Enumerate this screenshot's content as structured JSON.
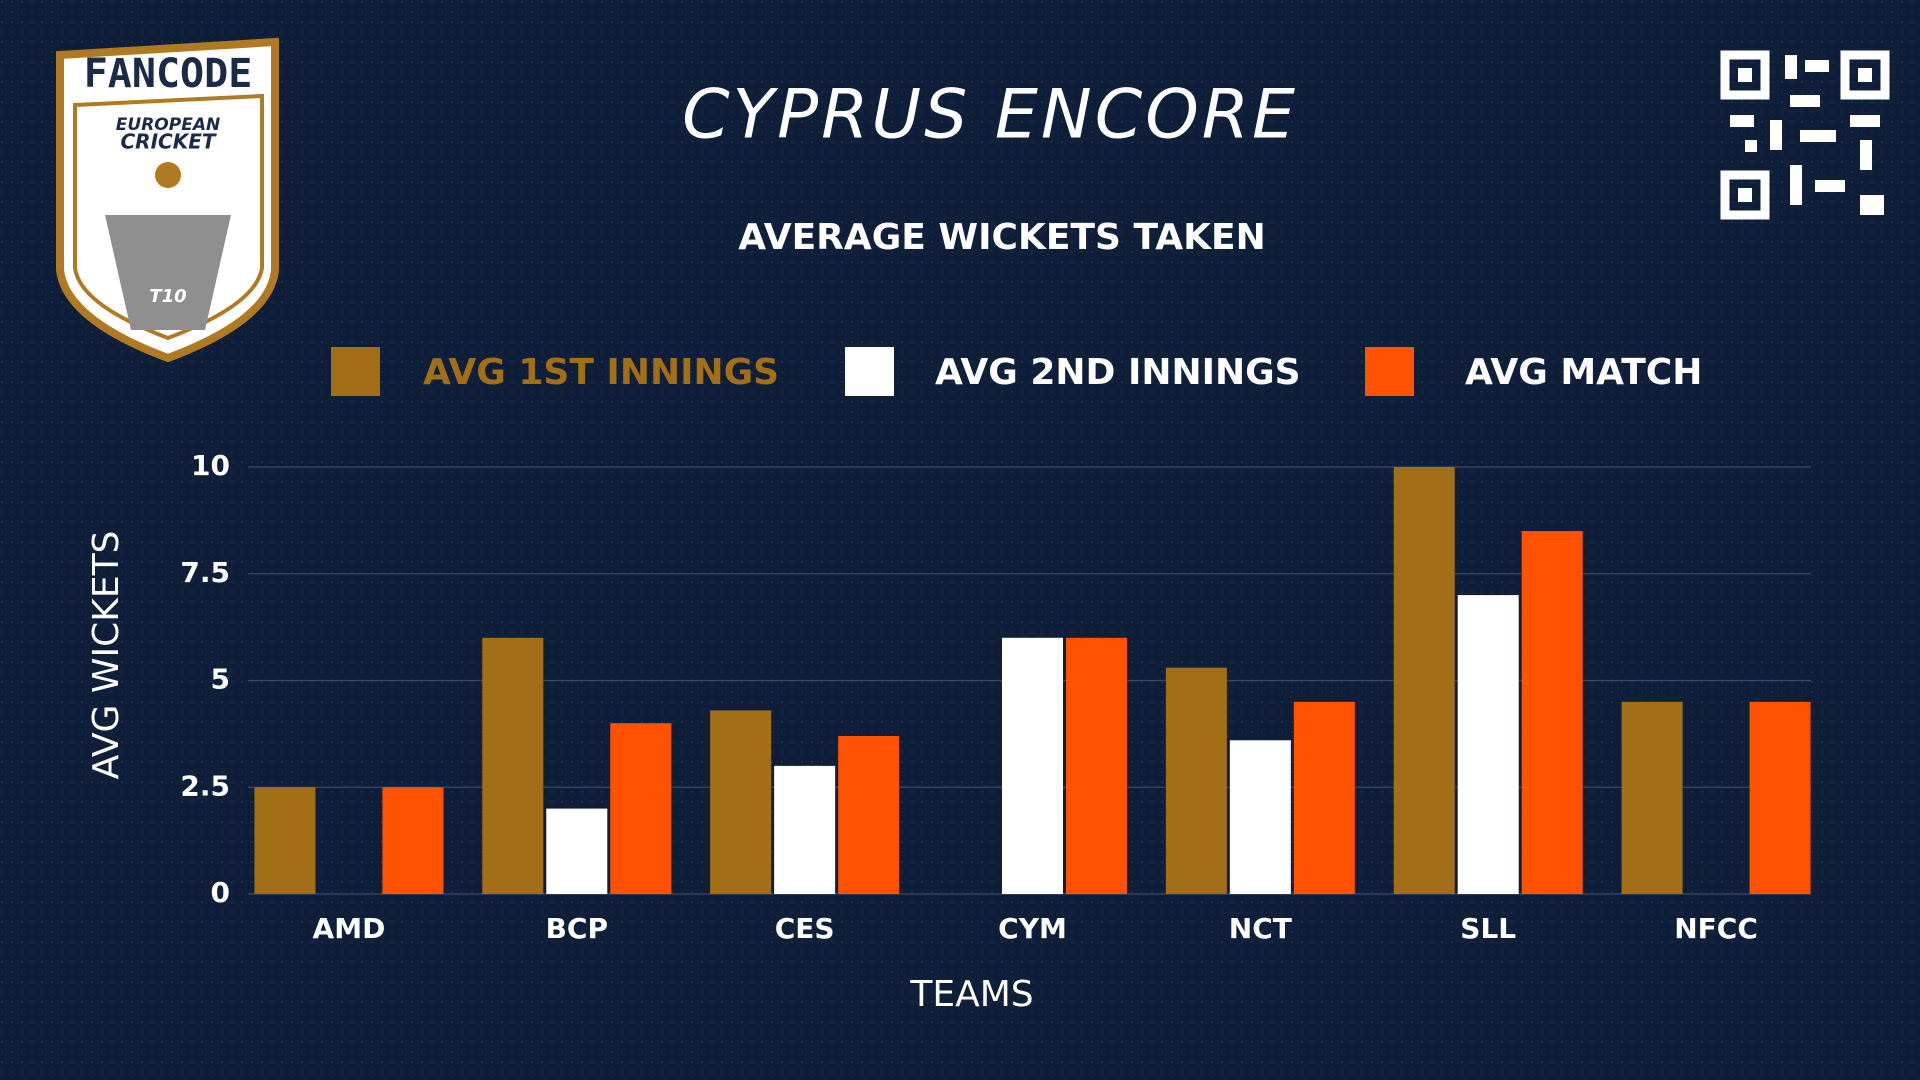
{
  "logo": {
    "brand": "FANCODE",
    "line1": "EUROPEAN",
    "line2": "CRICKET",
    "badge": "T10"
  },
  "chart_data": {
    "type": "bar",
    "title": "CYPRUS ENCORE",
    "subtitle": "AVERAGE WICKETS TAKEN",
    "x_label": "TEAMS",
    "y_label": "AVG WICKETS",
    "categories": [
      "AMD",
      "BCP",
      "CES",
      "CYM",
      "NCT",
      "SLL",
      "NFCC"
    ],
    "series": [
      {
        "name": "AVG 1ST INNINGS",
        "color": "#a36f16",
        "values": [
          2.5,
          6,
          4.3,
          0,
          5.3,
          10,
          4.5
        ]
      },
      {
        "name": "AVG 2ND INNINGS",
        "color": "#ffffff",
        "values": [
          0,
          2,
          3,
          6,
          3.6,
          7,
          0
        ]
      },
      {
        "name": "AVG MATCH",
        "color": "#ff5200",
        "values": [
          2.5,
          4,
          3.7,
          6,
          4.5,
          8.5,
          4.5
        ]
      }
    ],
    "ylim": [
      0,
      10
    ],
    "yticks": [
      0,
      2.5,
      5,
      7.5,
      10
    ],
    "grid": true
  }
}
